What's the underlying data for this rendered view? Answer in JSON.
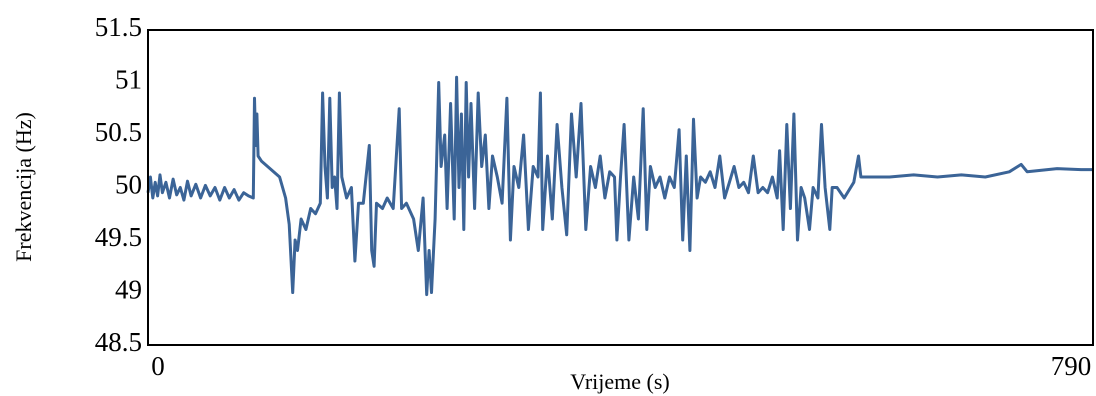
{
  "chart_data": {
    "type": "line",
    "x_label": "Vrijeme (s)",
    "y_label": "Frekvencija (Hz)",
    "xlim": [
      0,
      790
    ],
    "xticks": [
      0,
      790
    ],
    "ylim": [
      48.5,
      51.5
    ],
    "yticks": [
      48.5,
      49,
      49.5,
      50,
      50.5,
      51,
      51.5
    ],
    "x": [
      0,
      2,
      4,
      6,
      8,
      10,
      12,
      15,
      18,
      21,
      24,
      27,
      30,
      33,
      36,
      40,
      44,
      48,
      52,
      56,
      60,
      64,
      68,
      72,
      76,
      80,
      84,
      88,
      89,
      90,
      91,
      92,
      95,
      100,
      105,
      110,
      115,
      118,
      121,
      123,
      125,
      128,
      132,
      136,
      140,
      144,
      146,
      148,
      150,
      152,
      154,
      156,
      158,
      160,
      162,
      166,
      170,
      173,
      176,
      180,
      185,
      187,
      189,
      191,
      196,
      200,
      205,
      210,
      212,
      216,
      222,
      226,
      230,
      233,
      235,
      237,
      240,
      243,
      245,
      248,
      250,
      253,
      256,
      258,
      260,
      262,
      264,
      266,
      268,
      270,
      273,
      276,
      279,
      282,
      285,
      288,
      292,
      296,
      300,
      303,
      306,
      310,
      314,
      318,
      322,
      326,
      328,
      330,
      334,
      338,
      342,
      346,
      350,
      354,
      358,
      362,
      366,
      370,
      374,
      378,
      382,
      386,
      390,
      392,
      395,
      398,
      402,
      406,
      410,
      414,
      417,
      420,
      424,
      428,
      432,
      436,
      440,
      444,
      447,
      450,
      453,
      456,
      459,
      462,
      466,
      470,
      474,
      478,
      482,
      486,
      490,
      494,
      498,
      502,
      506,
      510,
      514,
      518,
      522,
      526,
      528,
      531,
      534,
      537,
      540,
      543,
      546,
      549,
      553,
      556,
      560,
      563,
      566,
      570,
      572,
      576,
      582,
      590,
      594,
      596,
      600,
      620,
      640,
      660,
      680,
      700,
      720,
      730,
      735,
      760,
      780,
      790
    ],
    "series": [
      {
        "name": "Frekvencija",
        "color": "#3b6497",
        "values": [
          49.95,
          50.1,
          49.9,
          50.05,
          49.92,
          50.12,
          49.95,
          50.05,
          49.9,
          50.08,
          49.93,
          50.0,
          49.88,
          50.06,
          49.92,
          50.03,
          49.9,
          50.02,
          49.92,
          50.0,
          49.88,
          50.0,
          49.9,
          49.98,
          49.88,
          49.95,
          49.92,
          49.9,
          50.85,
          50.4,
          50.7,
          50.3,
          50.25,
          50.2,
          50.15,
          50.1,
          49.9,
          49.65,
          49.0,
          49.5,
          49.4,
          49.7,
          49.6,
          49.8,
          49.75,
          49.85,
          50.9,
          50.2,
          49.9,
          50.85,
          50.0,
          50.1,
          49.8,
          50.9,
          50.1,
          49.9,
          50.0,
          49.3,
          49.85,
          49.85,
          50.4,
          49.4,
          49.25,
          49.85,
          49.8,
          49.9,
          49.8,
          50.75,
          49.8,
          49.85,
          49.7,
          49.4,
          49.9,
          48.98,
          49.4,
          49.0,
          49.7,
          51.0,
          50.2,
          50.5,
          49.8,
          50.8,
          49.7,
          51.05,
          50.0,
          50.7,
          49.6,
          51.0,
          50.1,
          50.8,
          49.8,
          50.9,
          50.2,
          50.5,
          49.8,
          50.3,
          50.1,
          49.85,
          50.85,
          49.5,
          50.2,
          50.0,
          50.5,
          49.6,
          50.2,
          50.1,
          50.9,
          49.6,
          50.3,
          49.7,
          50.6,
          50.0,
          49.55,
          50.7,
          50.1,
          50.8,
          49.6,
          50.2,
          50.0,
          50.3,
          49.9,
          50.15,
          50.1,
          49.5,
          50.1,
          50.6,
          49.5,
          50.1,
          49.7,
          50.75,
          49.6,
          50.2,
          50.0,
          50.1,
          49.9,
          50.1,
          50.0,
          50.55,
          49.5,
          50.3,
          49.4,
          50.65,
          49.9,
          50.1,
          50.05,
          50.15,
          50.0,
          50.3,
          49.9,
          50.05,
          50.2,
          50.0,
          50.05,
          49.95,
          50.3,
          49.95,
          50.0,
          49.95,
          50.1,
          49.9,
          50.35,
          49.6,
          50.6,
          49.8,
          50.7,
          49.5,
          50.0,
          49.9,
          49.6,
          50.0,
          49.9,
          50.6,
          50.0,
          49.6,
          50.0,
          50.0,
          49.9,
          50.05,
          50.3,
          50.1,
          50.1,
          50.1,
          50.12,
          50.1,
          50.12,
          50.1,
          50.15,
          50.22,
          50.15,
          50.18,
          50.17,
          50.17
        ]
      }
    ]
  }
}
